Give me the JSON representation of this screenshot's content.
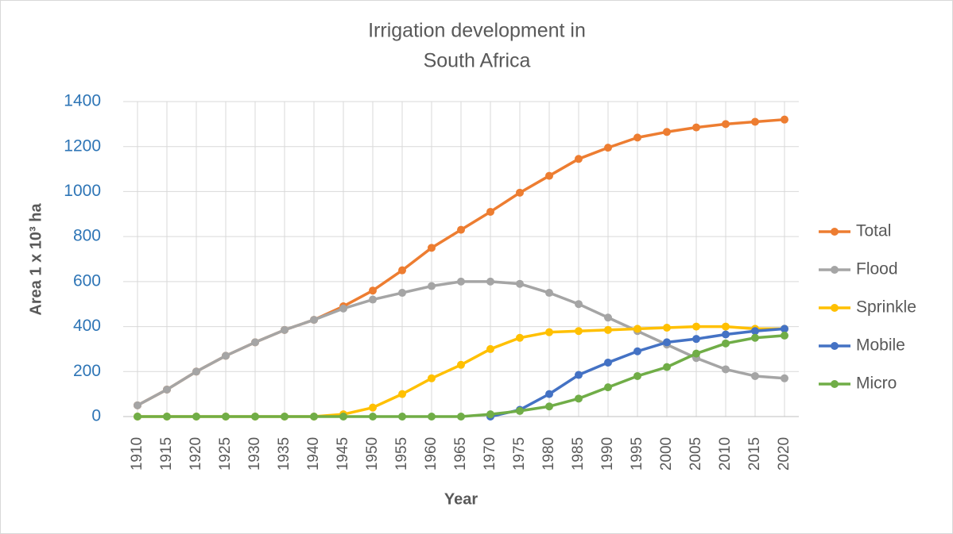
{
  "chart_data": {
    "type": "line",
    "title": [
      "Irrigation development  in",
      "South Africa"
    ],
    "x_label": "Year",
    "y_label": "Area 1 x 10³ ha",
    "categories": [
      "1910",
      "1915",
      "1920",
      "1925",
      "1930",
      "1935",
      "1940",
      "1945",
      "1950",
      "1955",
      "1960",
      "1965",
      "1970",
      "1975",
      "1980",
      "1985",
      "1990",
      "1995",
      "2000",
      "2005",
      "2010",
      "2015",
      "2020"
    ],
    "series": [
      {
        "name": "Total",
        "color": "#ed7d31",
        "values": [
          50,
          120,
          200,
          270,
          330,
          385,
          430,
          490,
          560,
          650,
          750,
          830,
          910,
          995,
          1070,
          1145,
          1195,
          1240,
          1265,
          1285,
          1300,
          1310,
          1320
        ]
      },
      {
        "name": "Flood",
        "color": "#a5a5a5",
        "values": [
          50,
          120,
          200,
          270,
          330,
          385,
          430,
          480,
          520,
          550,
          580,
          600,
          600,
          590,
          550,
          500,
          440,
          380,
          320,
          260,
          210,
          180,
          170
        ]
      },
      {
        "name": "Sprinkle",
        "color": "#ffc000",
        "values": [
          0,
          0,
          0,
          0,
          0,
          0,
          0,
          10,
          40,
          100,
          170,
          230,
          300,
          350,
          375,
          380,
          385,
          390,
          395,
          400,
          400,
          390,
          390
        ]
      },
      {
        "name": "Mobile",
        "color": "#4472c4",
        "values": [
          null,
          null,
          null,
          null,
          null,
          null,
          null,
          null,
          null,
          null,
          null,
          null,
          0,
          30,
          100,
          185,
          240,
          290,
          330,
          345,
          365,
          380,
          390
        ]
      },
      {
        "name": "Micro",
        "color": "#70ad47",
        "values": [
          0,
          0,
          0,
          0,
          0,
          0,
          0,
          0,
          0,
          0,
          0,
          0,
          10,
          25,
          45,
          80,
          130,
          180,
          220,
          280,
          325,
          350,
          360
        ]
      }
    ],
    "ylim": [
      0,
      1400
    ],
    "yticks": [
      0,
      200,
      400,
      600,
      800,
      1000,
      1200,
      1400
    ],
    "grid": true,
    "legend": "right"
  }
}
